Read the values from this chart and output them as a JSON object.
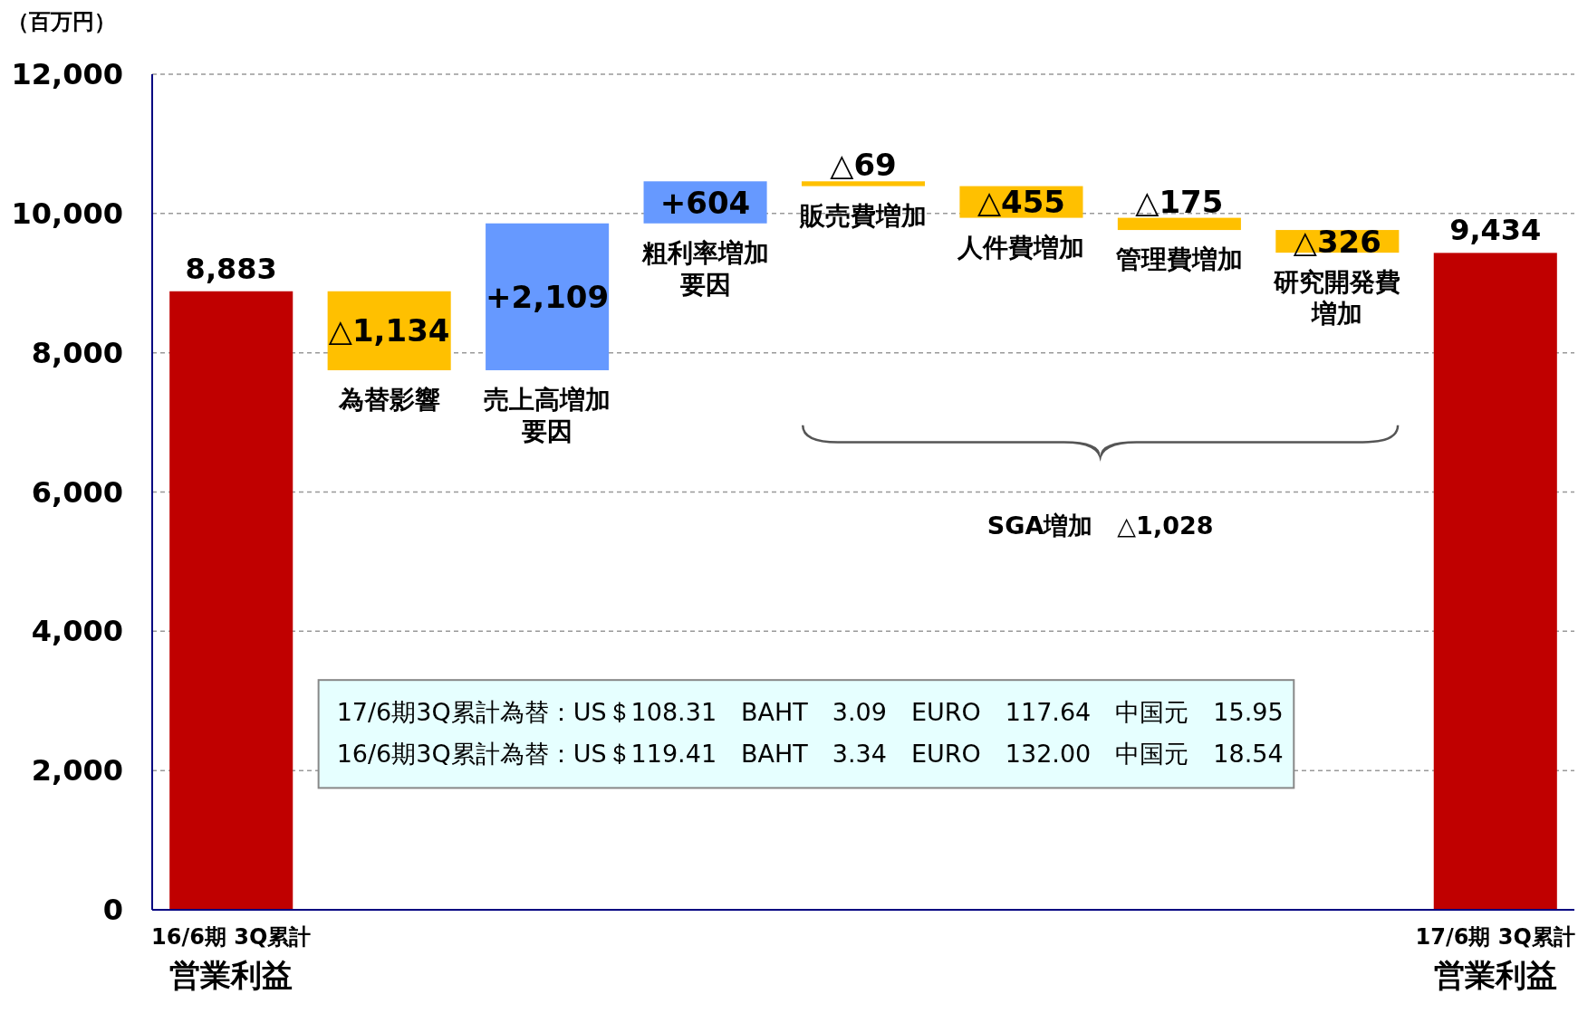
{
  "chart_data": {
    "type": "bar",
    "ylabel": "（百万円）",
    "categories": [
      "16/6期 3Q累計営業利益",
      "為替影響",
      "売上高増加要因",
      "粗利率増加要因",
      "販売費増加",
      "人件費増加",
      "管理費増加",
      "研究開発費増加",
      "17/6期 3Q累計営業利益"
    ],
    "values": [
      8883,
      -1134,
      2109,
      604,
      -69,
      -455,
      -175,
      -326,
      9434
    ],
    "base": [
      0,
      8883,
      7749,
      9858,
      10462,
      10393,
      9938,
      9763,
      0
    ],
    "colors": [
      "#c00000",
      "#ffc000",
      "#6699ff",
      "#6699ff",
      "#ffc000",
      "#ffc000",
      "#ffc000",
      "#ffc000",
      "#c00000"
    ],
    "value_labels": [
      "8,883",
      "△1,134",
      "+2,109",
      "+604",
      "△69",
      "△455",
      "△175",
      "△326",
      "9,434"
    ],
    "ylim": [
      0,
      12000
    ],
    "yticks": [
      {
        "value": 0,
        "label": "0"
      },
      {
        "value": 2000,
        "label": "2,000"
      },
      {
        "value": 4000,
        "label": "4,000"
      },
      {
        "value": 6000,
        "label": "6,000"
      },
      {
        "value": 8000,
        "label": "8,000"
      },
      {
        "value": 10000,
        "label": "10,000"
      },
      {
        "value": 12000,
        "label": "12,000"
      }
    ],
    "grid": "y",
    "annotations": [
      "SGA増加　△1,028",
      "17/6期3Q累計為替：US＄108.31　BAHT　3.09　EURO　117.64　中国元　15.95",
      "16/6期3Q累計為替：US＄119.41　BAHT　3.34　EURO　132.00　中国元　18.54"
    ]
  }
}
